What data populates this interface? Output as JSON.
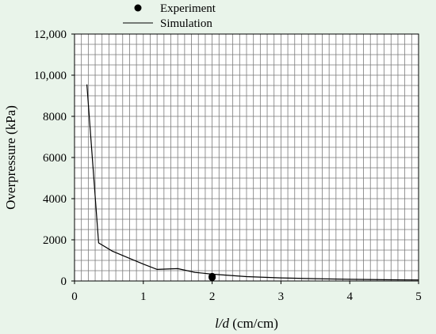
{
  "chart_data": {
    "type": "line",
    "title": "",
    "xlabel_italic": "l/d",
    "xlabel_units": " (cm/cm)",
    "ylabel": "Overpressure (kPa)",
    "xlim": [
      0,
      5
    ],
    "ylim": [
      0,
      12000
    ],
    "x_ticks": [
      0,
      1,
      2,
      3,
      4,
      5
    ],
    "x_tick_labels": [
      "0",
      "1",
      "2",
      "3",
      "4",
      "5"
    ],
    "y_ticks": [
      0,
      2000,
      4000,
      6000,
      8000,
      10000,
      12000
    ],
    "y_tick_labels": [
      "0",
      "2000",
      "4000",
      "6000",
      "8000",
      "10,000",
      "12,000"
    ],
    "grid": true,
    "legend_position": "top-center",
    "series": [
      {
        "name": "Experiment",
        "kind": "scatter",
        "x": [
          2.0,
          2.0
        ],
        "y": [
          220,
          170
        ]
      },
      {
        "name": "Simulation",
        "kind": "line",
        "x": [
          0.18,
          0.35,
          0.55,
          0.8,
          1.0,
          1.2,
          1.5,
          1.75,
          2.0,
          2.5,
          3.0,
          3.5,
          4.0,
          4.5,
          5.0
        ],
        "y": [
          9550,
          1850,
          1450,
          1100,
          820,
          560,
          600,
          420,
          330,
          210,
          150,
          110,
          80,
          60,
          50
        ]
      }
    ],
    "colors": {
      "line": "#000000",
      "marker": "#000000",
      "grid": "#7a7a7a",
      "background": "#e9f4ea",
      "plot_background": "#ffffff"
    }
  }
}
